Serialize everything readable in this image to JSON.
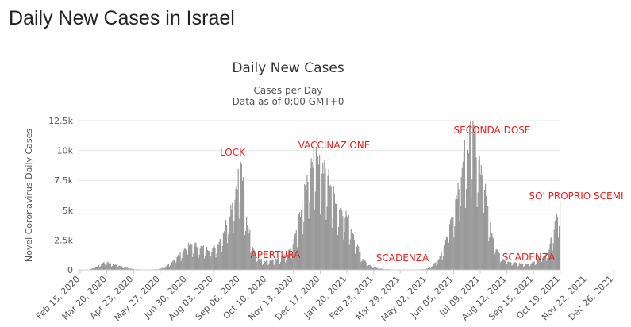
{
  "page": {
    "heading": "Daily New Cases in Israel"
  },
  "chart_data": {
    "type": "bar",
    "title": "Daily New Cases",
    "subtitle_line1": "Cases per Day",
    "subtitle_line2": "Data as of 0:00 GMT+0",
    "ylabel": "Novel Coronavirus Daily Cases",
    "xlabel": "",
    "ylim": [
      0,
      12500
    ],
    "yticks": [
      0,
      2500,
      5000,
      7500,
      10000,
      12500
    ],
    "ytick_labels": [
      "0",
      "2.5k",
      "5k",
      "7.5k",
      "10k",
      "12.5k"
    ],
    "xticks": [
      "Feb 15, 2020",
      "Mar 20, 2020",
      "Apr 23, 2020",
      "May 27, 2020",
      "Jun 30, 2020",
      "Aug 03, 2020",
      "Sep 06, 2020",
      "Oct 10, 2020",
      "Nov 13, 2020",
      "Dec 17, 2020",
      "Jan 20, 2021",
      "Feb 23, 2021",
      "Mar 29, 2021",
      "May 02, 2021",
      "Jun 05, 2021",
      "Jul 09, 2021",
      "Aug 12, 2021",
      "Sep 15, 2021",
      "Oct 19, 2021",
      "Nov 22, 2021",
      "Dec 26, 2021"
    ],
    "grid": true,
    "bar_color": "#999999",
    "annotation_color": "#e8231f",
    "series": [
      {
        "values_weekly": [
          [
            0,
            0
          ],
          [
            0,
            10
          ],
          [
            0,
            50
          ],
          [
            0,
            200
          ],
          [
            0,
            500
          ],
          [
            0,
            600
          ],
          [
            0,
            450
          ],
          [
            0,
            350
          ],
          [
            0,
            200
          ],
          [
            0,
            100
          ],
          [
            0,
            40
          ],
          [
            0,
            20
          ],
          [
            0,
            20
          ],
          [
            0,
            30
          ],
          [
            0,
            80
          ],
          [
            0,
            200
          ],
          [
            0,
            600
          ],
          [
            0,
            1000
          ],
          [
            0,
            1500
          ],
          [
            0,
            1900
          ],
          [
            0,
            2000
          ],
          [
            0,
            1800
          ],
          [
            0,
            1700
          ],
          [
            0,
            1600
          ],
          [
            0,
            2000
          ],
          [
            0,
            3000
          ],
          [
            0,
            4500
          ],
          [
            0,
            6000
          ],
          [
            0,
            8500
          ],
          [
            0,
            4000
          ],
          [
            0,
            2000
          ],
          [
            0,
            900
          ],
          [
            0,
            700
          ],
          [
            0,
            700
          ],
          [
            0,
            800
          ],
          [
            0,
            1000
          ],
          [
            0,
            1200
          ],
          [
            0,
            2000
          ],
          [
            0,
            4000
          ],
          [
            0,
            6000
          ],
          [
            0,
            8500
          ],
          [
            0,
            9500
          ],
          [
            0,
            8000
          ],
          [
            0,
            7500
          ],
          [
            0,
            6000
          ],
          [
            0,
            5000
          ],
          [
            0,
            4500
          ],
          [
            0,
            3500
          ],
          [
            0,
            2000
          ],
          [
            0,
            900
          ],
          [
            0,
            400
          ],
          [
            0,
            200
          ],
          [
            0,
            100
          ],
          [
            0,
            60
          ],
          [
            0,
            30
          ],
          [
            0,
            20
          ],
          [
            0,
            15
          ],
          [
            0,
            15
          ],
          [
            0,
            20
          ],
          [
            0,
            30
          ],
          [
            0,
            80
          ],
          [
            0,
            300
          ],
          [
            0,
            800
          ],
          [
            0,
            1800
          ],
          [
            0,
            3500
          ],
          [
            0,
            5500
          ],
          [
            0,
            8000
          ],
          [
            0,
            10000
          ],
          [
            0,
            11000
          ],
          [
            0,
            9000
          ],
          [
            0,
            6500
          ],
          [
            0,
            3500
          ],
          [
            0,
            1800
          ],
          [
            0,
            900
          ],
          [
            0,
            700
          ],
          [
            0,
            600
          ],
          [
            0,
            500
          ],
          [
            0,
            450
          ],
          [
            0,
            500
          ],
          [
            0,
            800
          ],
          [
            0,
            1000
          ],
          [
            0,
            1500
          ],
          [
            0,
            3500
          ],
          [
            0,
            5500
          ]
        ]
      }
    ],
    "annotations": [
      {
        "text": "LOCK",
        "x": "Sep 2020",
        "y": 10000
      },
      {
        "text": "APERTURA",
        "x": "Nov 2020",
        "y": 1500
      },
      {
        "text": "VACCINAZIONE",
        "x": "Jan 2021",
        "y": 10900
      },
      {
        "text": "SCADENZA",
        "x": "May 2021",
        "y": 1100
      },
      {
        "text": "SECONDA DOSE",
        "x": "Sep 2021",
        "y": 11800
      },
      {
        "text": "SCADENZA",
        "x": "Nov 2021",
        "y": 1200
      },
      {
        "text": "SO' PROPRIO SCEMI",
        "x": "Dec 2021",
        "y": 6200
      }
    ]
  }
}
